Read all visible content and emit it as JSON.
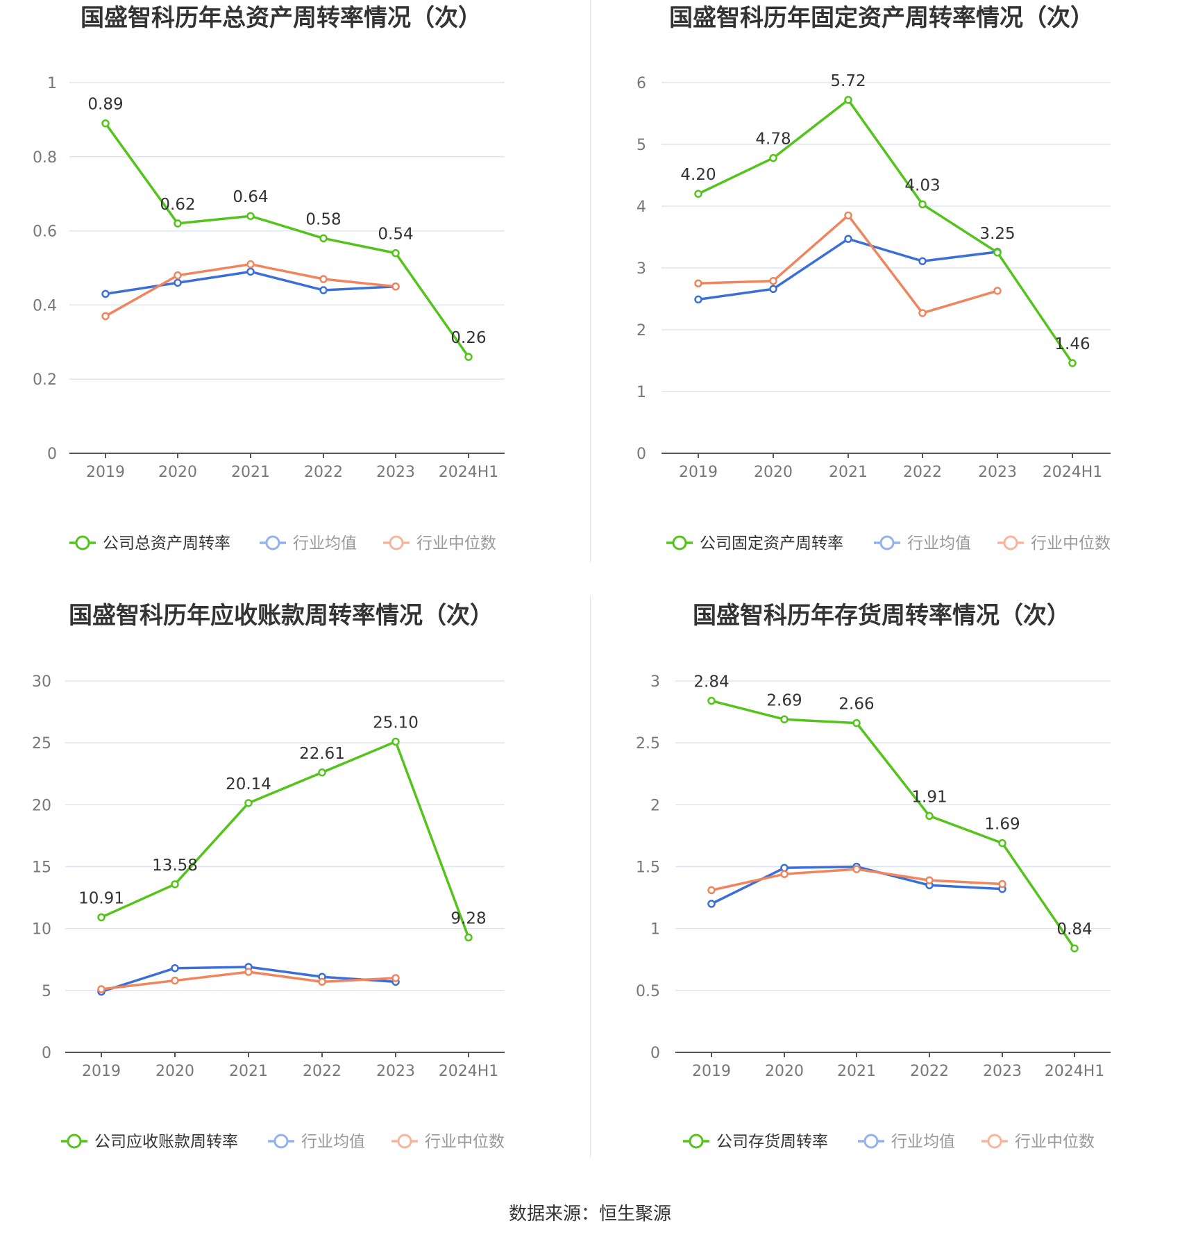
{
  "source_text": "数据来源：恒生聚源",
  "colors": {
    "company": "#52c41a",
    "industry_avg": "#3a6fd8",
    "industry_median": "#f0855d",
    "grid": "#dde3f0",
    "axis": "#555555",
    "tick_text": "#777777",
    "title_text": "#333333",
    "legend_muted": "#999999"
  },
  "chart_data": [
    {
      "type": "line",
      "title": "国盛智科历年总资产周转率情况（次）",
      "categories": [
        "2019",
        "2020",
        "2021",
        "2022",
        "2023",
        "2024H1"
      ],
      "ylim": [
        0,
        1
      ],
      "yticks": [
        "0",
        "0.2",
        "0.4",
        "0.6",
        "0.8",
        "1"
      ],
      "grid": true,
      "legend_position": "bottom",
      "series": [
        {
          "name": "公司总资产周转率",
          "key": "company",
          "values": [
            0.89,
            0.62,
            0.64,
            0.58,
            0.54,
            0.26
          ],
          "labels": [
            "0.89",
            "0.62",
            "0.64",
            "0.58",
            "0.54",
            "0.26"
          ]
        },
        {
          "name": "行业均值",
          "key": "industry_avg",
          "values": [
            0.43,
            0.46,
            0.49,
            0.44,
            0.45,
            null
          ]
        },
        {
          "name": "行业中位数",
          "key": "industry_median",
          "values": [
            0.37,
            0.48,
            0.51,
            0.47,
            0.45,
            null
          ]
        }
      ]
    },
    {
      "type": "line",
      "title": "国盛智科历年固定资产周转率情况（次）",
      "categories": [
        "2019",
        "2020",
        "2021",
        "2022",
        "2023",
        "2024H1"
      ],
      "ylim": [
        0,
        6
      ],
      "yticks": [
        "0",
        "1",
        "2",
        "3",
        "4",
        "5",
        "6"
      ],
      "grid": true,
      "legend_position": "bottom",
      "series": [
        {
          "name": "公司固定资产周转率",
          "key": "company",
          "values": [
            4.2,
            4.78,
            5.72,
            4.03,
            3.25,
            1.46
          ],
          "labels": [
            "4.20",
            "4.78",
            "5.72",
            "4.03",
            "3.25",
            "1.46"
          ]
        },
        {
          "name": "行业均值",
          "key": "industry_avg",
          "values": [
            2.49,
            2.66,
            3.47,
            3.11,
            3.26,
            null
          ]
        },
        {
          "name": "行业中位数",
          "key": "industry_median",
          "values": [
            2.75,
            2.79,
            3.85,
            2.27,
            2.63,
            null
          ]
        }
      ]
    },
    {
      "type": "line",
      "title": "国盛智科历年应收账款周转率情况（次）",
      "categories": [
        "2019",
        "2020",
        "2021",
        "2022",
        "2023",
        "2024H1"
      ],
      "ylim": [
        0,
        30
      ],
      "yticks": [
        "0",
        "5",
        "10",
        "15",
        "20",
        "25",
        "30"
      ],
      "grid": true,
      "legend_position": "bottom",
      "series": [
        {
          "name": "公司应收账款周转率",
          "key": "company",
          "values": [
            10.91,
            13.58,
            20.14,
            22.61,
            25.1,
            9.28
          ],
          "labels": [
            "10.91",
            "13.58",
            "20.14",
            "22.61",
            "25.10",
            "9.28"
          ]
        },
        {
          "name": "行业均值",
          "key": "industry_avg",
          "values": [
            4.9,
            6.8,
            6.9,
            6.1,
            5.7,
            null
          ]
        },
        {
          "name": "行业中位数",
          "key": "industry_median",
          "values": [
            5.1,
            5.8,
            6.5,
            5.7,
            6.0,
            null
          ]
        }
      ]
    },
    {
      "type": "line",
      "title": "国盛智科历年存货周转率情况（次）",
      "categories": [
        "2019",
        "2020",
        "2021",
        "2022",
        "2023",
        "2024H1"
      ],
      "ylim": [
        0,
        3
      ],
      "yticks": [
        "0",
        "0.5",
        "1",
        "1.5",
        "2",
        "2.5",
        "3"
      ],
      "grid": true,
      "legend_position": "bottom",
      "series": [
        {
          "name": "公司存货周转率",
          "key": "company",
          "values": [
            2.84,
            2.69,
            2.66,
            1.91,
            1.69,
            0.84
          ],
          "labels": [
            "2.84",
            "2.69",
            "2.66",
            "1.91",
            "1.69",
            "0.84"
          ]
        },
        {
          "name": "行业均值",
          "key": "industry_avg",
          "values": [
            1.2,
            1.49,
            1.5,
            1.35,
            1.32,
            null
          ]
        },
        {
          "name": "行业中位数",
          "key": "industry_median",
          "values": [
            1.31,
            1.44,
            1.48,
            1.39,
            1.36,
            null
          ]
        }
      ]
    }
  ]
}
